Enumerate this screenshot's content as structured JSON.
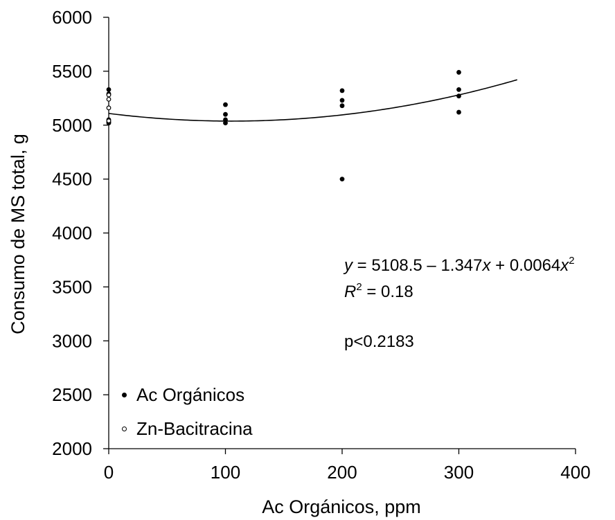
{
  "chart_data": {
    "type": "scatter",
    "xlabel": "Ac Orgánicos, ppm",
    "ylabel": "Consumo de MS total, g",
    "xlim": [
      0,
      400
    ],
    "ylim": [
      2000,
      6000
    ],
    "xticks": [
      "0",
      "100",
      "200",
      "300",
      "400"
    ],
    "yticks": [
      "2000",
      "2500",
      "3000",
      "3500",
      "4000",
      "4500",
      "5000",
      "5500",
      "6000"
    ],
    "grid": false,
    "legend_position": "bottom-left",
    "series": [
      {
        "name": "Ac Orgánicos",
        "marker": "filled",
        "points": [
          [
            0,
            5330
          ],
          [
            0,
            5290
          ],
          [
            0,
            5050
          ],
          [
            0,
            5030
          ],
          [
            0,
            5020
          ],
          [
            100,
            5190
          ],
          [
            100,
            5100
          ],
          [
            100,
            5050
          ],
          [
            100,
            5020
          ],
          [
            200,
            5320
          ],
          [
            200,
            5230
          ],
          [
            200,
            5180
          ],
          [
            200,
            4500
          ],
          [
            300,
            5490
          ],
          [
            300,
            5330
          ],
          [
            300,
            5270
          ],
          [
            300,
            5120
          ]
        ]
      },
      {
        "name": "Zn-Bacitracina",
        "marker": "open",
        "points": [
          [
            0,
            5280
          ],
          [
            0,
            5240
          ],
          [
            0,
            5160
          ],
          [
            0,
            5040
          ]
        ]
      }
    ],
    "trendline": {
      "intercept": 5108.5,
      "b1": -1.347,
      "b2": 0.0064,
      "x_range": [
        0,
        350
      ]
    },
    "annotations": {
      "equation": {
        "y": "y",
        "eq_lhs": " = 5108.5 – 1.347",
        "x": "x",
        "plus": " + 0.0064",
        "x2": "x",
        "exp": "2"
      },
      "r2": {
        "r": "R",
        "exp": "2",
        "value": " = 0.18"
      },
      "pvalue": "p<0.2183"
    },
    "colors": {
      "marker": "#000000",
      "line": "#000000"
    }
  }
}
